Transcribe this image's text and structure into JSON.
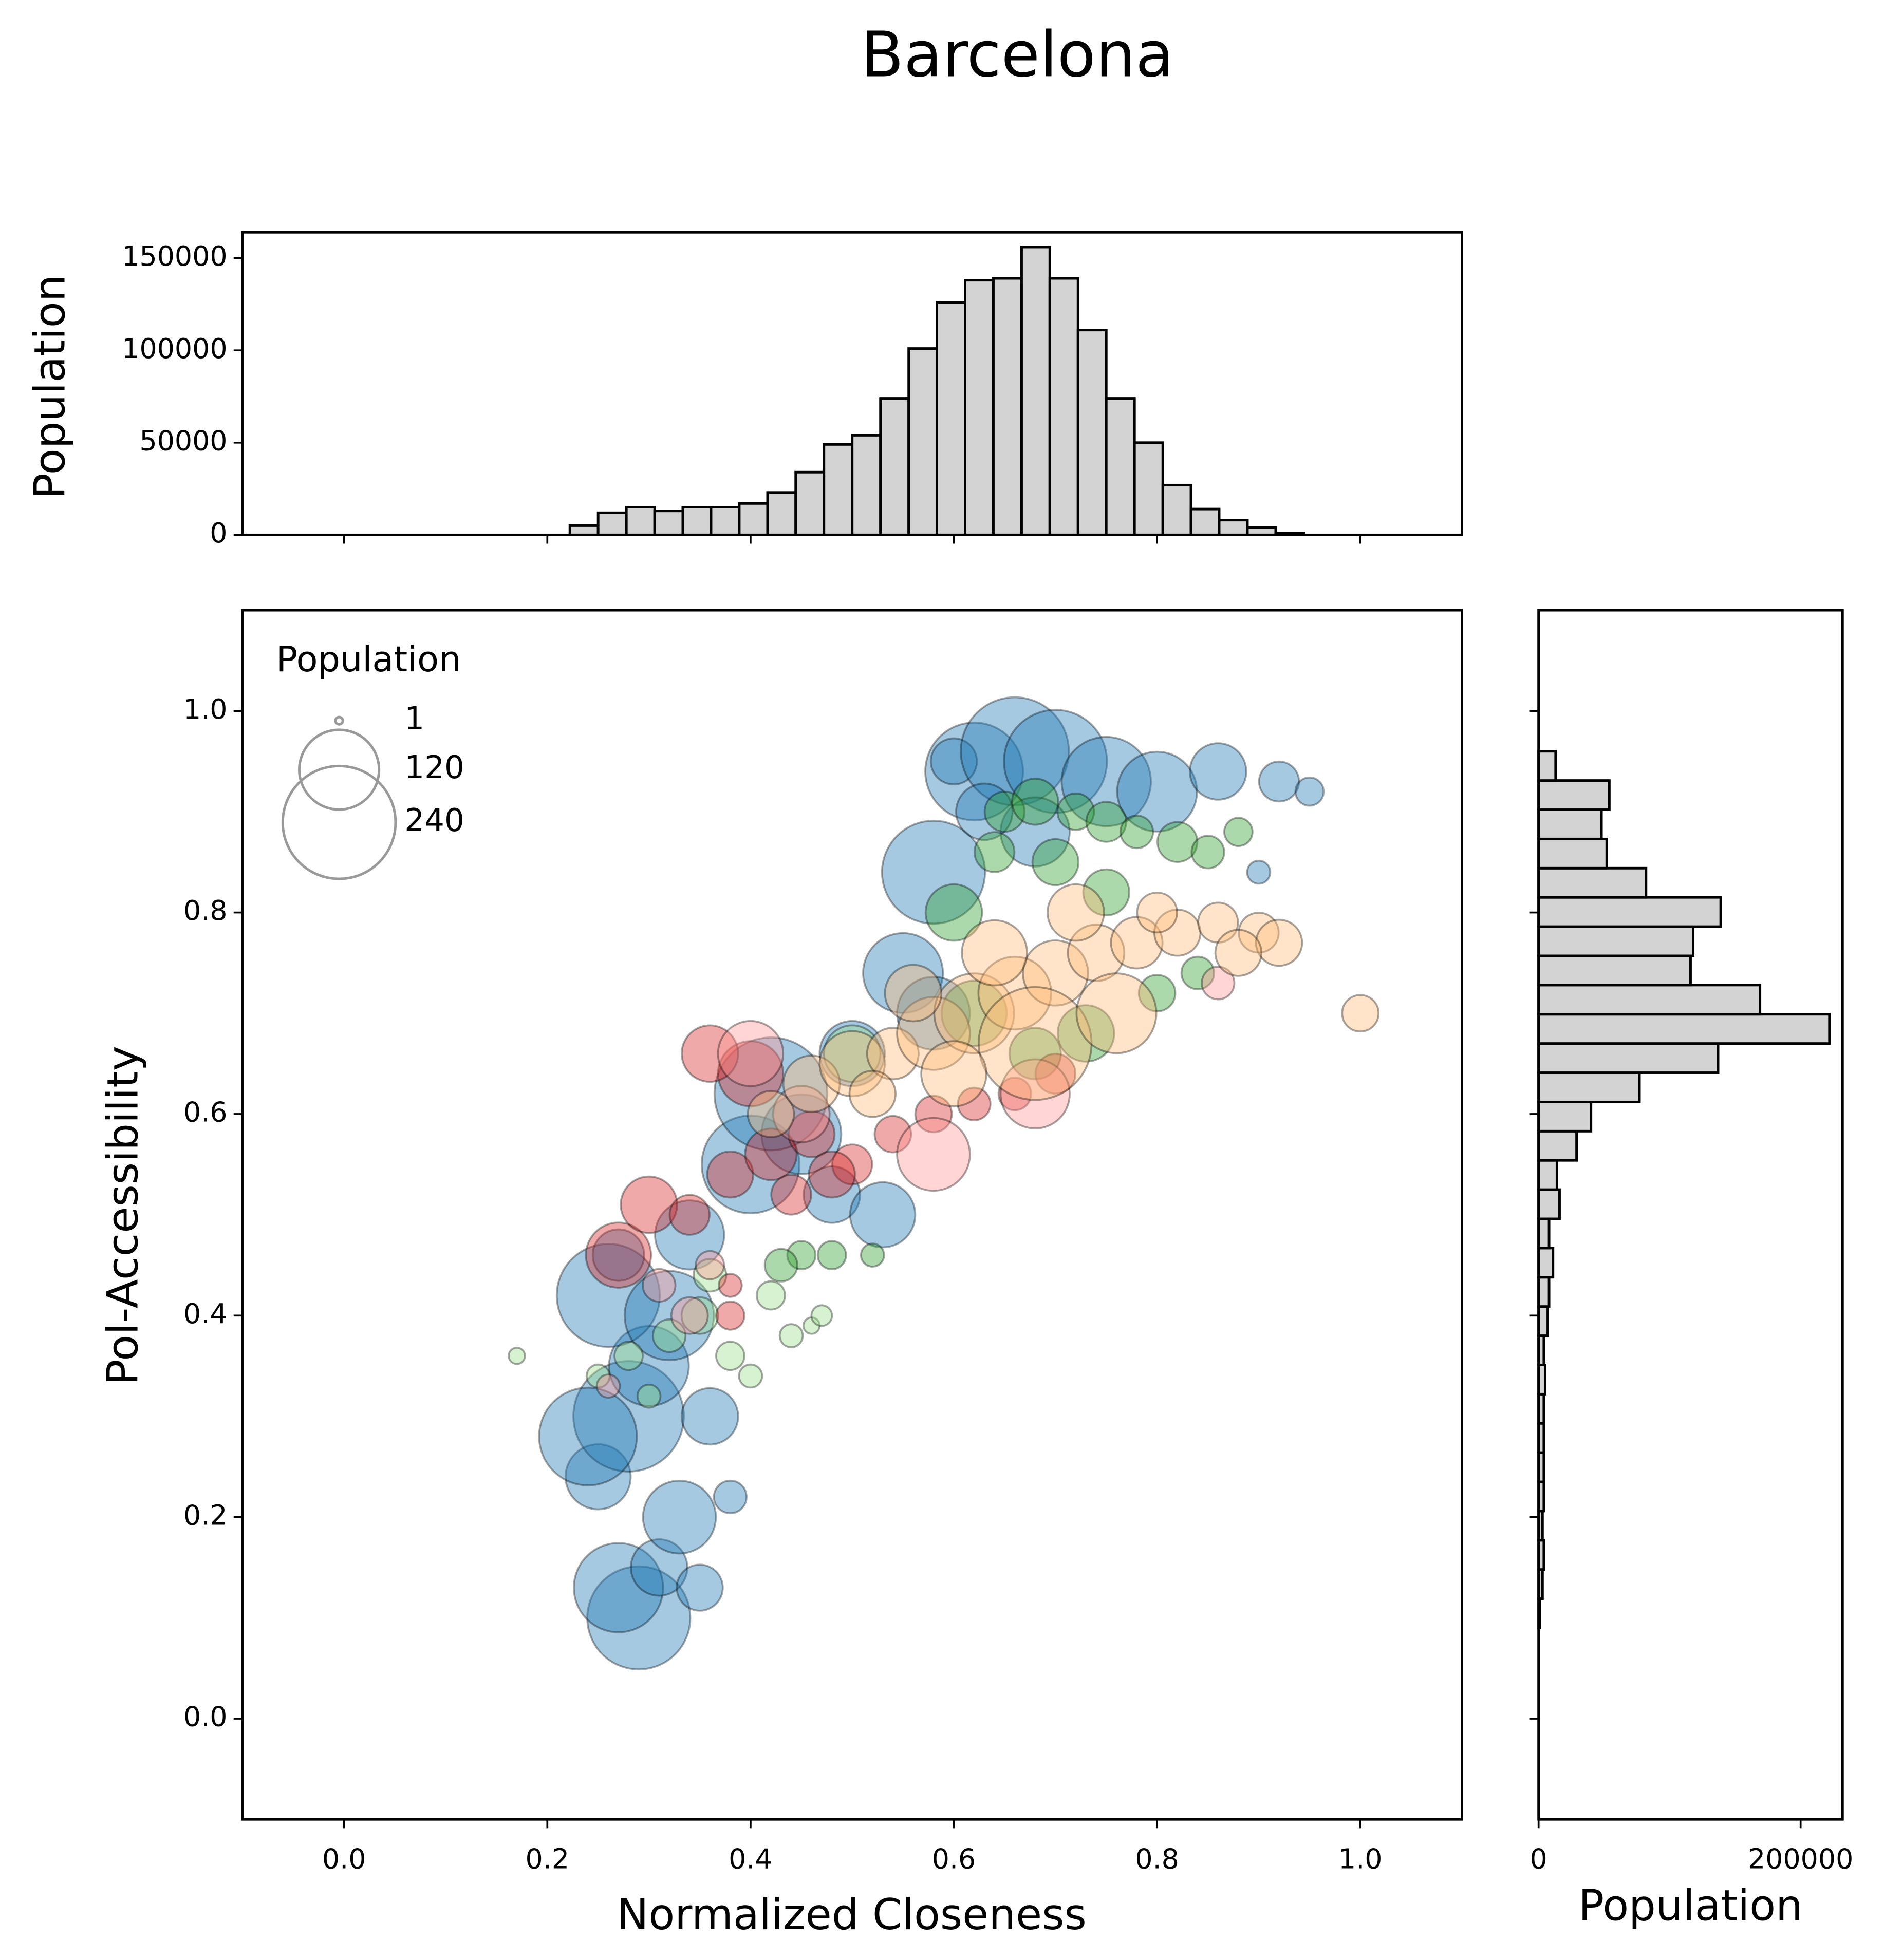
{
  "chart_data": [
    {
      "type": "histogram",
      "orientation": "vertical",
      "ylabel": "Population",
      "color": "#d3d3d3",
      "bins": [
        0,
        0.0278,
        0.0556,
        0.0833,
        0.1111,
        0.1389,
        0.1667,
        0.1944,
        0.2222,
        0.25,
        0.2778,
        0.3056,
        0.3333,
        0.3611,
        0.3889,
        0.4167,
        0.4444,
        0.4722,
        0.5,
        0.5278,
        0.5556,
        0.5833,
        0.6111,
        0.6389,
        0.6667,
        0.6944,
        0.7222,
        0.75,
        0.7778,
        0.8056,
        0.8333,
        0.8611,
        0.8889,
        0.9167,
        0.9444,
        0.9722,
        1
      ],
      "counts": [
        0,
        0,
        0,
        0,
        0,
        0,
        0,
        0,
        5000,
        12000,
        15000,
        13000,
        15000,
        15000,
        17000,
        23000,
        34000,
        49000,
        54000,
        74000,
        101000,
        126000,
        138000,
        139000,
        156000,
        139000,
        111000,
        74000,
        50000,
        27000,
        14000,
        8000,
        4000,
        1000,
        0,
        0
      ],
      "xlim": [
        -0.1,
        1.1
      ],
      "ylim": [
        0,
        164000
      ],
      "yticks": [
        0,
        50000,
        100000,
        150000
      ]
    },
    {
      "type": "scatter",
      "title": "Barcelona",
      "xlabel": "Normalized Closeness",
      "ylabel": "Pol-Accessibility",
      "xlim": [
        -0.1,
        1.1
      ],
      "ylim": [
        -0.1,
        1.1
      ],
      "xticks": [
        {
          "value": 0,
          "label": "0.0"
        },
        0.2,
        0.4,
        0.6,
        0.8,
        {
          "value": 1,
          "label": "1.0"
        }
      ],
      "yticks": [
        {
          "value": 0,
          "label": "0.0"
        },
        0.2,
        0.4,
        0.6,
        0.8,
        {
          "value": 1,
          "label": "1.0"
        }
      ],
      "size_legend": {
        "title": "Population",
        "values": [
          1,
          120,
          240
        ]
      },
      "series": [
        {
          "color": "#1f77b4",
          "x": [
            0.29,
            0.27,
            0.31,
            0.35,
            0.38,
            0.25,
            0.33,
            0.28,
            0.24,
            0.3,
            0.36,
            0.26,
            0.32,
            0.27,
            0.34,
            0.4,
            0.45,
            0.42,
            0.5,
            0.48,
            0.55,
            0.53,
            0.58,
            0.62,
            0.6,
            0.66,
            0.7,
            0.75,
            0.8,
            0.86,
            0.92,
            0.95,
            0.68,
            0.58,
            0.63,
            0.9
          ],
          "values": [
            0.1,
            0.13,
            0.15,
            0.13,
            0.22,
            0.24,
            0.2,
            0.3,
            0.28,
            0.35,
            0.3,
            0.42,
            0.4,
            0.46,
            0.48,
            0.55,
            0.58,
            0.62,
            0.66,
            0.52,
            0.74,
            0.5,
            0.84,
            0.94,
            0.95,
            0.96,
            0.95,
            0.93,
            0.92,
            0.94,
            0.93,
            0.92,
            0.88,
            0.7,
            0.9,
            0.84
          ],
          "sizes": [
            200,
            150,
            60,
            40,
            20,
            80,
            100,
            230,
            180,
            120,
            60,
            200,
            150,
            50,
            90,
            180,
            120,
            240,
            80,
            60,
            120,
            80,
            200,
            180,
            40,
            220,
            200,
            150,
            120,
            60,
            30,
            15,
            90,
            100,
            60,
            10
          ]
        },
        {
          "color": "#2ca02c",
          "x": [
            0.65,
            0.68,
            0.72,
            0.75,
            0.78,
            0.82,
            0.85,
            0.88,
            0.7,
            0.64,
            0.6,
            0.75,
            0.8,
            0.84,
            0.62,
            0.45,
            0.48,
            0.52,
            0.43,
            0.68,
            0.73
          ],
          "values": [
            0.9,
            0.91,
            0.9,
            0.89,
            0.88,
            0.87,
            0.86,
            0.88,
            0.85,
            0.86,
            0.8,
            0.82,
            0.72,
            0.74,
            0.7,
            0.46,
            0.46,
            0.46,
            0.45,
            0.66,
            0.68
          ],
          "sizes": [
            30,
            40,
            25,
            30,
            20,
            30,
            20,
            15,
            40,
            30,
            60,
            40,
            25,
            20,
            80,
            15,
            15,
            10,
            20,
            50,
            60
          ]
        },
        {
          "color": "#98df8a",
          "x": [
            0.17,
            0.25,
            0.28,
            0.32,
            0.35,
            0.38,
            0.4,
            0.44,
            0.46,
            0.42,
            0.36,
            0.3,
            0.5,
            0.47
          ],
          "values": [
            0.36,
            0.34,
            0.36,
            0.38,
            0.4,
            0.36,
            0.34,
            0.38,
            0.39,
            0.42,
            0.44,
            0.32,
            0.66,
            0.4
          ],
          "sizes": [
            5,
            10,
            15,
            20,
            25,
            15,
            10,
            10,
            5,
            15,
            20,
            10,
            60,
            8
          ]
        },
        {
          "color": "#d62728",
          "x": [
            0.27,
            0.3,
            0.34,
            0.38,
            0.42,
            0.46,
            0.5,
            0.54,
            0.58,
            0.62,
            0.66,
            0.4,
            0.36,
            0.44,
            0.48,
            0.38,
            0.38,
            0.7
          ],
          "values": [
            0.46,
            0.51,
            0.5,
            0.54,
            0.56,
            0.58,
            0.55,
            0.58,
            0.6,
            0.61,
            0.62,
            0.64,
            0.66,
            0.52,
            0.54,
            0.43,
            0.4,
            0.64
          ],
          "sizes": [
            80,
            60,
            30,
            40,
            50,
            40,
            30,
            25,
            25,
            20,
            20,
            80,
            60,
            30,
            40,
            10,
            15,
            30
          ]
        },
        {
          "color": "#ff9896",
          "x": [
            0.31,
            0.34,
            0.36,
            0.26,
            0.4,
            0.45,
            0.58,
            0.86,
            0.68
          ],
          "values": [
            0.43,
            0.4,
            0.45,
            0.33,
            0.66,
            0.6,
            0.56,
            0.73,
            0.62
          ],
          "sizes": [
            20,
            25,
            15,
            10,
            80,
            60,
            100,
            20,
            90
          ]
        },
        {
          "color": "#ffbb78",
          "x": [
            0.42,
            0.46,
            0.5,
            0.54,
            0.58,
            0.62,
            0.66,
            0.7,
            0.74,
            0.78,
            0.82,
            0.86,
            0.9,
            0.92,
            1.0,
            0.56,
            0.64,
            0.72,
            0.68,
            0.76,
            0.6,
            0.52,
            0.8,
            0.88
          ],
          "values": [
            0.6,
            0.63,
            0.65,
            0.66,
            0.68,
            0.7,
            0.72,
            0.74,
            0.76,
            0.77,
            0.78,
            0.79,
            0.78,
            0.77,
            0.7,
            0.72,
            0.76,
            0.8,
            0.67,
            0.7,
            0.64,
            0.62,
            0.8,
            0.76
          ],
          "sizes": [
            40,
            60,
            80,
            50,
            100,
            120,
            100,
            80,
            60,
            50,
            40,
            30,
            30,
            40,
            25,
            60,
            80,
            60,
            240,
            120,
            80,
            40,
            30,
            40
          ]
        }
      ]
    },
    {
      "type": "histogram",
      "orientation": "horizontal",
      "xlabel": "Population",
      "color": "#d3d3d3",
      "bins": [
        0.09,
        0.119,
        0.148,
        0.177,
        0.206,
        0.235,
        0.264,
        0.293,
        0.322,
        0.351,
        0.38,
        0.409,
        0.438,
        0.467,
        0.496,
        0.525,
        0.554,
        0.583,
        0.612,
        0.641,
        0.67,
        0.699,
        0.728,
        0.757,
        0.786,
        0.815,
        0.844,
        0.873,
        0.902,
        0.931,
        0.96
      ],
      "counts": [
        1000,
        3000,
        4000,
        3000,
        4000,
        4000,
        4000,
        4000,
        5000,
        4000,
        7000,
        8000,
        11000,
        8000,
        16000,
        14000,
        29000,
        40000,
        77000,
        137000,
        222000,
        169000,
        116000,
        118000,
        139000,
        82000,
        52000,
        48000,
        54000,
        13000
      ],
      "xlim": [
        0,
        232000
      ],
      "ylim": [
        -0.1,
        1.1
      ],
      "xticks": [
        0,
        200000
      ]
    }
  ]
}
